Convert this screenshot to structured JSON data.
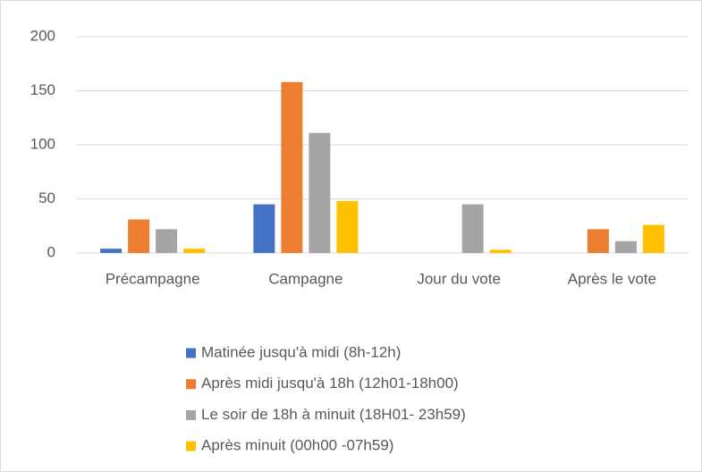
{
  "chart_data": {
    "type": "bar",
    "categories": [
      "Précampagne",
      "Campagne",
      "Jour du vote",
      "Après le vote"
    ],
    "series": [
      {
        "name": "Matinée jusqu'à midi (8h-12h)",
        "color": "#4472c4",
        "values": [
          4,
          45,
          0,
          0
        ]
      },
      {
        "name": "Après midi jusqu'à 18h (12h01-18h00)",
        "color": "#ed7d31",
        "values": [
          31,
          158,
          0,
          22
        ]
      },
      {
        "name": "Le soir de 18h à minuit (18H01- 23h59)",
        "color": "#a5a5a5",
        "values": [
          22,
          111,
          45,
          11
        ]
      },
      {
        "name": "Après minuit (00h00 -07h59)",
        "color": "#ffc000",
        "values": [
          4,
          48,
          3,
          26
        ]
      }
    ],
    "ylim": [
      0,
      200
    ],
    "yticks": [
      0,
      50,
      100,
      150,
      200
    ],
    "grid": true,
    "legend": "bottom"
  }
}
